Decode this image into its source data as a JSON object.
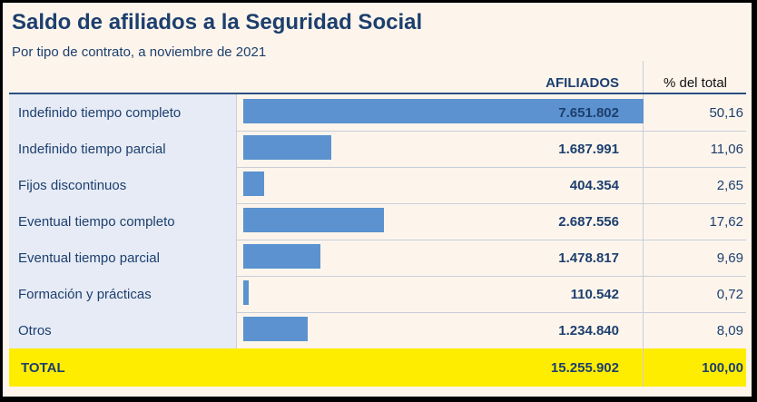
{
  "chart_data": {
    "type": "bar",
    "title": "Saldo de afiliados a la Seguridad Social",
    "subtitle": "Por tipo de contrato, a noviembre de 2021",
    "columns": {
      "afiliados": "AFILIADOS",
      "pct": "% del total"
    },
    "categories": [
      "Indefinido tiempo completo",
      "Indefinido tiempo parcial",
      "Fijos discontinuos",
      "Eventual tiempo completo",
      "Eventual tiempo parcial",
      "Formación y prácticas",
      "Otros"
    ],
    "values": [
      7651802,
      1687991,
      404354,
      2687556,
      1478817,
      110542,
      1234840
    ],
    "value_labels": [
      "7.651.802",
      "1.687.991",
      "404.354",
      "2.687.556",
      "1.478.817",
      "110.542",
      "1.234.840"
    ],
    "pct_labels": [
      "50,16",
      "11,06",
      "2,65",
      "17,62",
      "9,69",
      "0,72",
      "8,09"
    ],
    "total": {
      "label": "TOTAL",
      "value": "15.255.902",
      "pct": "100,00"
    },
    "colors": {
      "bar": "#5b92cf",
      "total_bg": "#ffed00",
      "text": "#1d3f6e",
      "background": "#fdf5ec",
      "label_bg": "#e6ebf5"
    }
  }
}
